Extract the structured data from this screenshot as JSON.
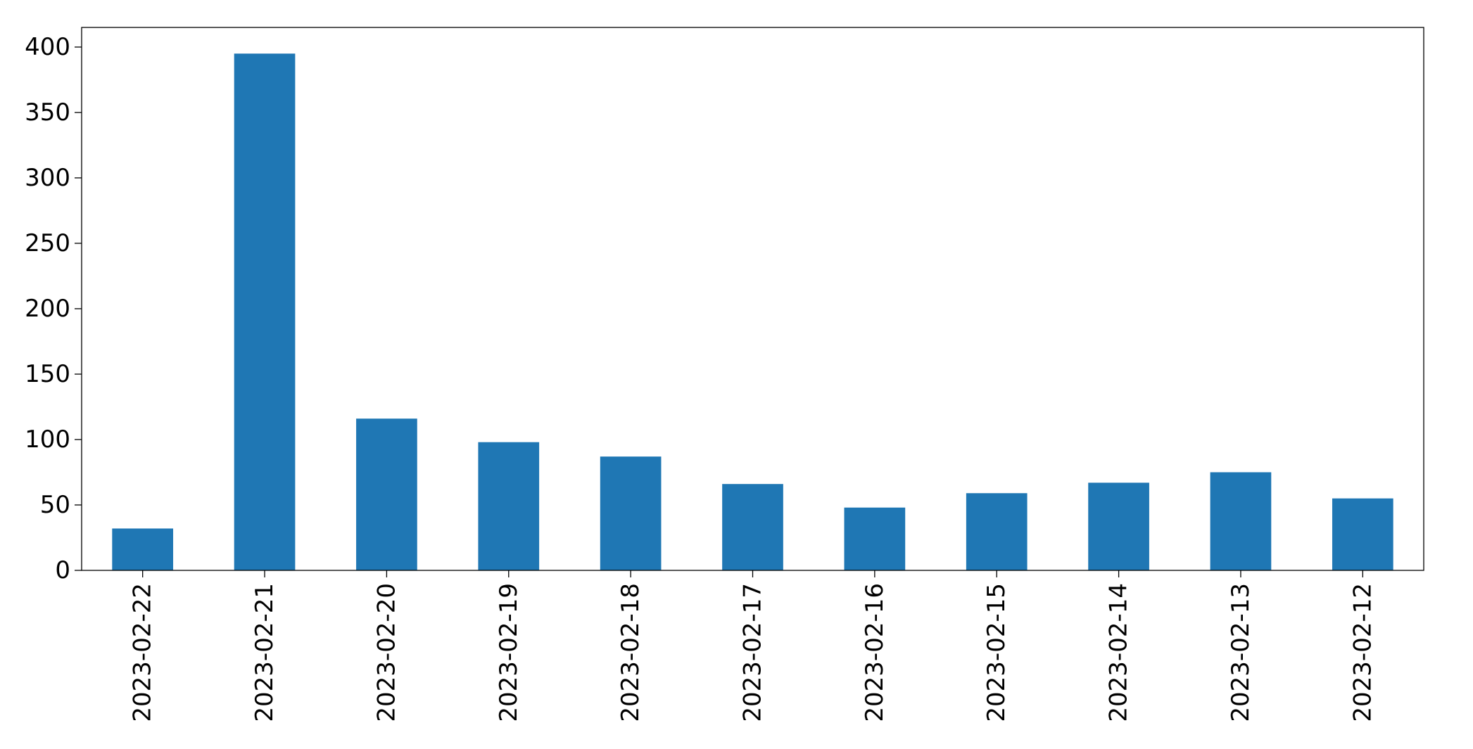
{
  "chart_data": {
    "type": "bar",
    "title": "",
    "xlabel": "",
    "ylabel": "",
    "categories": [
      "2023-02-22",
      "2023-02-21",
      "2023-02-20",
      "2023-02-19",
      "2023-02-18",
      "2023-02-17",
      "2023-02-16",
      "2023-02-15",
      "2023-02-14",
      "2023-02-13",
      "2023-02-12"
    ],
    "values": [
      32,
      395,
      116,
      98,
      87,
      66,
      48,
      59,
      67,
      75,
      55
    ],
    "ylim": [
      0,
      415
    ],
    "yticks": [
      0,
      50,
      100,
      150,
      200,
      250,
      300,
      350,
      400
    ],
    "grid": false,
    "legend": "none",
    "bar_color": "#1f77b4"
  }
}
